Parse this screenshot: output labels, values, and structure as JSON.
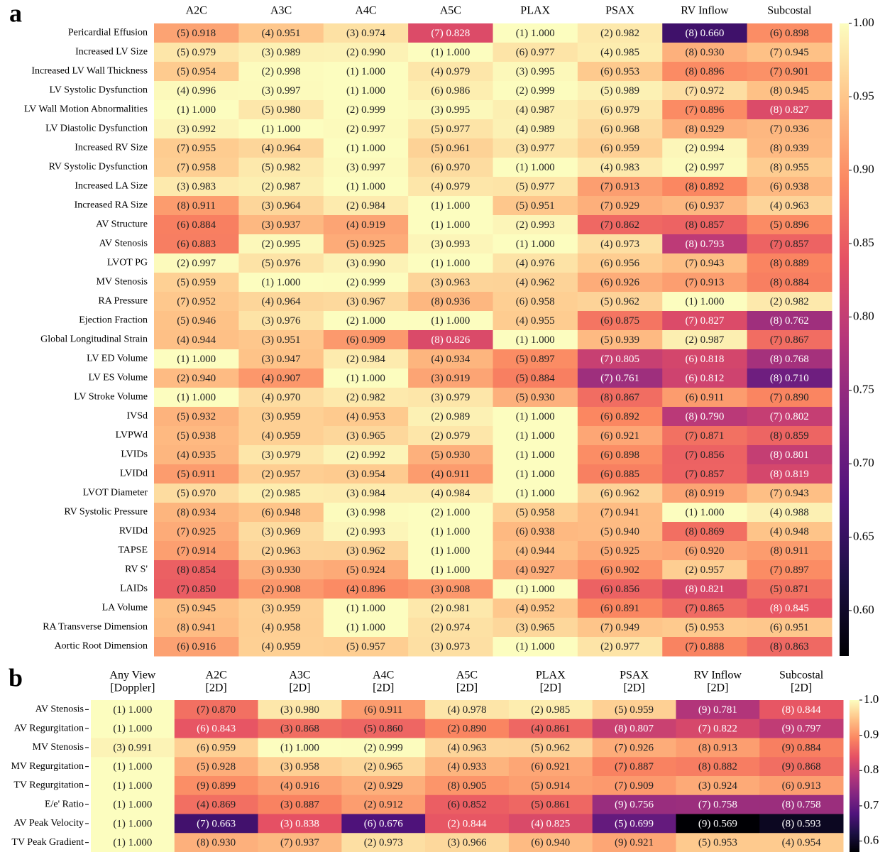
{
  "chart_data": [
    {
      "type": "heatmap",
      "panel_label": "a",
      "colormap": "magma",
      "columns": [
        "A2C",
        "A3C",
        "A4C",
        "A5C",
        "PLAX",
        "PSAX",
        "RV Inflow",
        "Subcostal"
      ],
      "rows": [
        "Pericardial Effusion",
        "Increased LV Size",
        "Increased LV Wall Thickness",
        "LV Systolic Dysfunction",
        "LV Wall Motion Abnormalities",
        "LV Diastolic Dysfunction",
        "Increased RV Size",
        "RV Systolic Dysfunction",
        "Increased LA Size",
        "Increased RA Size",
        "AV Structure",
        "AV Stenosis",
        "LVOT PG",
        "MV Stenosis",
        "RA Pressure",
        "Ejection Fraction",
        "Global Longitudinal Strain",
        "LV ED Volume",
        "LV ES Volume",
        "LV Stroke Volume",
        "IVSd",
        "LVPWd",
        "LVIDs",
        "LVIDd",
        "LVOT Diameter",
        "RV Systolic Pressure",
        "RVIDd",
        "TAPSE",
        "RV S'",
        "LAIDs",
        "LA Volume",
        "RA Transverse Dimension",
        "Aortic Root Dimension"
      ],
      "values": [
        [
          0.918,
          0.951,
          0.974,
          0.828,
          1.0,
          0.982,
          0.66,
          0.898
        ],
        [
          0.979,
          0.989,
          0.99,
          1.0,
          0.977,
          0.985,
          0.93,
          0.945
        ],
        [
          0.954,
          0.998,
          1.0,
          0.979,
          0.995,
          0.953,
          0.896,
          0.901
        ],
        [
          0.996,
          0.997,
          1.0,
          0.986,
          0.999,
          0.989,
          0.972,
          0.945
        ],
        [
          1.0,
          0.98,
          0.999,
          0.995,
          0.987,
          0.979,
          0.896,
          0.827
        ],
        [
          0.992,
          1.0,
          0.997,
          0.977,
          0.989,
          0.968,
          0.929,
          0.936
        ],
        [
          0.955,
          0.964,
          1.0,
          0.961,
          0.977,
          0.959,
          0.994,
          0.939
        ],
        [
          0.958,
          0.982,
          0.997,
          0.97,
          1.0,
          0.983,
          0.997,
          0.955
        ],
        [
          0.983,
          0.987,
          1.0,
          0.979,
          0.977,
          0.913,
          0.892,
          0.938
        ],
        [
          0.911,
          0.964,
          0.984,
          1.0,
          0.951,
          0.929,
          0.937,
          0.963
        ],
        [
          0.884,
          0.937,
          0.919,
          1.0,
          0.993,
          0.862,
          0.857,
          0.896
        ],
        [
          0.883,
          0.995,
          0.925,
          0.993,
          1.0,
          0.973,
          0.793,
          0.857
        ],
        [
          0.997,
          0.976,
          0.99,
          1.0,
          0.976,
          0.956,
          0.943,
          0.889
        ],
        [
          0.959,
          1.0,
          0.999,
          0.963,
          0.962,
          0.926,
          0.913,
          0.884
        ],
        [
          0.952,
          0.964,
          0.967,
          0.936,
          0.958,
          0.962,
          1.0,
          0.982
        ],
        [
          0.946,
          0.976,
          1.0,
          1.0,
          0.955,
          0.875,
          0.827,
          0.762
        ],
        [
          0.944,
          0.951,
          0.909,
          0.826,
          1.0,
          0.939,
          0.987,
          0.867
        ],
        [
          1.0,
          0.947,
          0.984,
          0.934,
          0.897,
          0.805,
          0.818,
          0.768
        ],
        [
          0.94,
          0.907,
          1.0,
          0.919,
          0.884,
          0.761,
          0.812,
          0.71
        ],
        [
          1.0,
          0.97,
          0.982,
          0.979,
          0.93,
          0.867,
          0.911,
          0.89
        ],
        [
          0.932,
          0.959,
          0.953,
          0.989,
          1.0,
          0.892,
          0.79,
          0.802
        ],
        [
          0.938,
          0.959,
          0.965,
          0.979,
          1.0,
          0.921,
          0.871,
          0.859
        ],
        [
          0.935,
          0.979,
          0.992,
          0.93,
          1.0,
          0.898,
          0.856,
          0.801
        ],
        [
          0.911,
          0.957,
          0.954,
          0.911,
          1.0,
          0.885,
          0.857,
          0.819
        ],
        [
          0.97,
          0.985,
          0.984,
          0.984,
          1.0,
          0.962,
          0.919,
          0.943
        ],
        [
          0.934,
          0.948,
          0.998,
          1.0,
          0.958,
          0.941,
          1.0,
          0.988
        ],
        [
          0.925,
          0.969,
          0.993,
          1.0,
          0.938,
          0.94,
          0.869,
          0.948
        ],
        [
          0.914,
          0.963,
          0.962,
          1.0,
          0.944,
          0.925,
          0.92,
          0.911
        ],
        [
          0.854,
          0.93,
          0.924,
          1.0,
          0.927,
          0.902,
          0.957,
          0.897
        ],
        [
          0.85,
          0.908,
          0.896,
          0.908,
          1.0,
          0.856,
          0.821,
          0.871
        ],
        [
          0.945,
          0.959,
          1.0,
          0.981,
          0.952,
          0.891,
          0.865,
          0.845
        ],
        [
          0.941,
          0.958,
          1.0,
          0.974,
          0.965,
          0.949,
          0.953,
          0.951
        ],
        [
          0.916,
          0.959,
          0.957,
          0.973,
          1.0,
          0.977,
          0.888,
          0.863
        ]
      ],
      "value_labels": [
        [
          "(5) 0.918",
          "(4) 0.951",
          "(3) 0.974",
          "(7) 0.828",
          "(1) 1.000",
          "(2) 0.982",
          "(8) 0.660",
          "(6) 0.898"
        ],
        [
          "(5) 0.979",
          "(3) 0.989",
          "(2) 0.990",
          "(1) 1.000",
          "(6) 0.977",
          "(4) 0.985",
          "(8) 0.930",
          "(7) 0.945"
        ],
        [
          "(5) 0.954",
          "(2) 0.998",
          "(1) 1.000",
          "(4) 0.979",
          "(3) 0.995",
          "(6) 0.953",
          "(8) 0.896",
          "(7) 0.901"
        ],
        [
          "(4) 0.996",
          "(3) 0.997",
          "(1) 1.000",
          "(6) 0.986",
          "(2) 0.999",
          "(5) 0.989",
          "(7) 0.972",
          "(8) 0.945"
        ],
        [
          "(1) 1.000",
          "(5) 0.980",
          "(2) 0.999",
          "(3) 0.995",
          "(4) 0.987",
          "(6) 0.979",
          "(7) 0.896",
          "(8) 0.827"
        ],
        [
          "(3) 0.992",
          "(1) 1.000",
          "(2) 0.997",
          "(5) 0.977",
          "(4) 0.989",
          "(6) 0.968",
          "(8) 0.929",
          "(7) 0.936"
        ],
        [
          "(7) 0.955",
          "(4) 0.964",
          "(1) 1.000",
          "(5) 0.961",
          "(3) 0.977",
          "(6) 0.959",
          "(2) 0.994",
          "(8) 0.939"
        ],
        [
          "(7) 0.958",
          "(5) 0.982",
          "(3) 0.997",
          "(6) 0.970",
          "(1) 1.000",
          "(4) 0.983",
          "(2) 0.997",
          "(8) 0.955"
        ],
        [
          "(3) 0.983",
          "(2) 0.987",
          "(1) 1.000",
          "(4) 0.979",
          "(5) 0.977",
          "(7) 0.913",
          "(8) 0.892",
          "(6) 0.938"
        ],
        [
          "(8) 0.911",
          "(3) 0.964",
          "(2) 0.984",
          "(1) 1.000",
          "(5) 0.951",
          "(7) 0.929",
          "(6) 0.937",
          "(4) 0.963"
        ],
        [
          "(6) 0.884",
          "(3) 0.937",
          "(4) 0.919",
          "(1) 1.000",
          "(2) 0.993",
          "(7) 0.862",
          "(8) 0.857",
          "(5) 0.896"
        ],
        [
          "(6) 0.883",
          "(2) 0.995",
          "(5) 0.925",
          "(3) 0.993",
          "(1) 1.000",
          "(4) 0.973",
          "(8) 0.793",
          "(7) 0.857"
        ],
        [
          "(2) 0.997",
          "(5) 0.976",
          "(3) 0.990",
          "(1) 1.000",
          "(4) 0.976",
          "(6) 0.956",
          "(7) 0.943",
          "(8) 0.889"
        ],
        [
          "(5) 0.959",
          "(1) 1.000",
          "(2) 0.999",
          "(3) 0.963",
          "(4) 0.962",
          "(6) 0.926",
          "(7) 0.913",
          "(8) 0.884"
        ],
        [
          "(7) 0.952",
          "(4) 0.964",
          "(3) 0.967",
          "(8) 0.936",
          "(6) 0.958",
          "(5) 0.962",
          "(1) 1.000",
          "(2) 0.982"
        ],
        [
          "(5) 0.946",
          "(3) 0.976",
          "(2) 1.000",
          "(1) 1.000",
          "(4) 0.955",
          "(6) 0.875",
          "(7) 0.827",
          "(8) 0.762"
        ],
        [
          "(4) 0.944",
          "(3) 0.951",
          "(6) 0.909",
          "(8) 0.826",
          "(1) 1.000",
          "(5) 0.939",
          "(2) 0.987",
          "(7) 0.867"
        ],
        [
          "(1) 1.000",
          "(3) 0.947",
          "(2) 0.984",
          "(4) 0.934",
          "(5) 0.897",
          "(7) 0.805",
          "(6) 0.818",
          "(8) 0.768"
        ],
        [
          "(2) 0.940",
          "(4) 0.907",
          "(1) 1.000",
          "(3) 0.919",
          "(5) 0.884",
          "(7) 0.761",
          "(6) 0.812",
          "(8) 0.710"
        ],
        [
          "(1) 1.000",
          "(4) 0.970",
          "(2) 0.982",
          "(3) 0.979",
          "(5) 0.930",
          "(8) 0.867",
          "(6) 0.911",
          "(7) 0.890"
        ],
        [
          "(5) 0.932",
          "(3) 0.959",
          "(4) 0.953",
          "(2) 0.989",
          "(1) 1.000",
          "(6) 0.892",
          "(8) 0.790",
          "(7) 0.802"
        ],
        [
          "(5) 0.938",
          "(4) 0.959",
          "(3) 0.965",
          "(2) 0.979",
          "(1) 1.000",
          "(6) 0.921",
          "(7) 0.871",
          "(8) 0.859"
        ],
        [
          "(4) 0.935",
          "(3) 0.979",
          "(2) 0.992",
          "(5) 0.930",
          "(1) 1.000",
          "(6) 0.898",
          "(7) 0.856",
          "(8) 0.801"
        ],
        [
          "(5) 0.911",
          "(2) 0.957",
          "(3) 0.954",
          "(4) 0.911",
          "(1) 1.000",
          "(6) 0.885",
          "(7) 0.857",
          "(8) 0.819"
        ],
        [
          "(5) 0.970",
          "(2) 0.985",
          "(3) 0.984",
          "(4) 0.984",
          "(1) 1.000",
          "(6) 0.962",
          "(8) 0.919",
          "(7) 0.943"
        ],
        [
          "(8) 0.934",
          "(6) 0.948",
          "(3) 0.998",
          "(2) 1.000",
          "(5) 0.958",
          "(7) 0.941",
          "(1) 1.000",
          "(4) 0.988"
        ],
        [
          "(7) 0.925",
          "(3) 0.969",
          "(2) 0.993",
          "(1) 1.000",
          "(6) 0.938",
          "(5) 0.940",
          "(8) 0.869",
          "(4) 0.948"
        ],
        [
          "(7) 0.914",
          "(2) 0.963",
          "(3) 0.962",
          "(1) 1.000",
          "(4) 0.944",
          "(5) 0.925",
          "(6) 0.920",
          "(8) 0.911"
        ],
        [
          "(8) 0.854",
          "(3) 0.930",
          "(5) 0.924",
          "(1) 1.000",
          "(4) 0.927",
          "(6) 0.902",
          "(2) 0.957",
          "(7) 0.897"
        ],
        [
          "(7) 0.850",
          "(2) 0.908",
          "(4) 0.896",
          "(3) 0.908",
          "(1) 1.000",
          "(6) 0.856",
          "(8) 0.821",
          "(5) 0.871"
        ],
        [
          "(5) 0.945",
          "(3) 0.959",
          "(1) 1.000",
          "(2) 0.981",
          "(4) 0.952",
          "(6) 0.891",
          "(7) 0.865",
          "(8) 0.845"
        ],
        [
          "(8) 0.941",
          "(4) 0.958",
          "(1) 1.000",
          "(2) 0.974",
          "(3) 0.965",
          "(7) 0.949",
          "(5) 0.953",
          "(6) 0.951"
        ],
        [
          "(6) 0.916",
          "(4) 0.959",
          "(5) 0.957",
          "(3) 0.973",
          "(1) 1.000",
          "(2) 0.977",
          "(7) 0.888",
          "(8) 0.863"
        ]
      ],
      "clim": [
        0.569,
        1.0
      ],
      "cticks": [
        {
          "value": 1.0,
          "label": "1.00"
        },
        0.95,
        {
          "value": 0.9,
          "label": "0.90"
        },
        0.85,
        {
          "value": 0.8,
          "label": "0.80"
        },
        0.75,
        {
          "value": 0.7,
          "label": "0.70"
        },
        0.65,
        {
          "value": 0.6,
          "label": "0.60"
        }
      ]
    },
    {
      "type": "heatmap",
      "panel_label": "b",
      "colormap": "magma",
      "columns": [
        [
          "Any View",
          "[Doppler]"
        ],
        [
          "A2C",
          "[2D]"
        ],
        [
          "A3C",
          "[2D]"
        ],
        [
          "A4C",
          "[2D]"
        ],
        [
          "A5C",
          "[2D]"
        ],
        [
          "PLAX",
          "[2D]"
        ],
        [
          "PSAX",
          "[2D]"
        ],
        [
          "RV Inflow",
          "[2D]"
        ],
        [
          "Subcostal",
          "[2D]"
        ]
      ],
      "rows": [
        "AV Stenosis",
        "AV Regurgitation",
        "MV Stenosis",
        "MV Regurgitation",
        "TV Regurgitation",
        "E/e' Ratio",
        "AV Peak Velocity",
        "TV Peak Gradient"
      ],
      "values": [
        [
          1.0,
          0.87,
          0.98,
          0.911,
          0.978,
          0.985,
          0.959,
          0.781,
          0.844
        ],
        [
          1.0,
          0.843,
          0.868,
          0.86,
          0.89,
          0.861,
          0.807,
          0.822,
          0.797
        ],
        [
          0.991,
          0.959,
          1.0,
          0.999,
          0.963,
          0.962,
          0.926,
          0.913,
          0.884
        ],
        [
          1.0,
          0.928,
          0.958,
          0.965,
          0.933,
          0.921,
          0.887,
          0.882,
          0.868
        ],
        [
          1.0,
          0.899,
          0.916,
          0.929,
          0.905,
          0.914,
          0.909,
          0.924,
          0.913
        ],
        [
          1.0,
          0.869,
          0.887,
          0.912,
          0.852,
          0.861,
          0.756,
          0.758,
          0.758
        ],
        [
          1.0,
          0.663,
          0.838,
          0.676,
          0.844,
          0.825,
          0.699,
          0.569,
          0.593
        ],
        [
          1.0,
          0.93,
          0.937,
          0.973,
          0.966,
          0.94,
          0.921,
          0.953,
          0.954
        ]
      ],
      "value_labels": [
        [
          "(1) 1.000",
          "(7) 0.870",
          "(3) 0.980",
          "(6) 0.911",
          "(4) 0.978",
          "(2) 0.985",
          "(5) 0.959",
          "(9) 0.781",
          "(8) 0.844"
        ],
        [
          "(1) 1.000",
          "(6) 0.843",
          "(3) 0.868",
          "(5) 0.860",
          "(2) 0.890",
          "(4) 0.861",
          "(8) 0.807",
          "(7) 0.822",
          "(9) 0.797"
        ],
        [
          "(3) 0.991",
          "(6) 0.959",
          "(1) 1.000",
          "(2) 0.999",
          "(4) 0.963",
          "(5) 0.962",
          "(7) 0.926",
          "(8) 0.913",
          "(9) 0.884"
        ],
        [
          "(1) 1.000",
          "(5) 0.928",
          "(3) 0.958",
          "(2) 0.965",
          "(4) 0.933",
          "(6) 0.921",
          "(7) 0.887",
          "(8) 0.882",
          "(9) 0.868"
        ],
        [
          "(1) 1.000",
          "(9) 0.899",
          "(4) 0.916",
          "(2) 0.929",
          "(8) 0.905",
          "(5) 0.914",
          "(7) 0.909",
          "(3) 0.924",
          "(6) 0.913"
        ],
        [
          "(1) 1.000",
          "(4) 0.869",
          "(3) 0.887",
          "(2) 0.912",
          "(6) 0.852",
          "(5) 0.861",
          "(9) 0.756",
          "(7) 0.758",
          "(8) 0.758"
        ],
        [
          "(1) 1.000",
          "(7) 0.663",
          "(3) 0.838",
          "(6) 0.676",
          "(2) 0.844",
          "(4) 0.825",
          "(5) 0.699",
          "(9) 0.569",
          "(8) 0.593"
        ],
        [
          "(1) 1.000",
          "(8) 0.930",
          "(7) 0.937",
          "(2) 0.973",
          "(3) 0.966",
          "(6) 0.940",
          "(9) 0.921",
          "(5) 0.953",
          "(4) 0.954"
        ]
      ],
      "clim": [
        0.569,
        1.0
      ],
      "cticks": [
        {
          "value": 1.0,
          "label": "1.0"
        },
        0.9,
        0.8,
        0.7,
        0.6
      ]
    }
  ]
}
